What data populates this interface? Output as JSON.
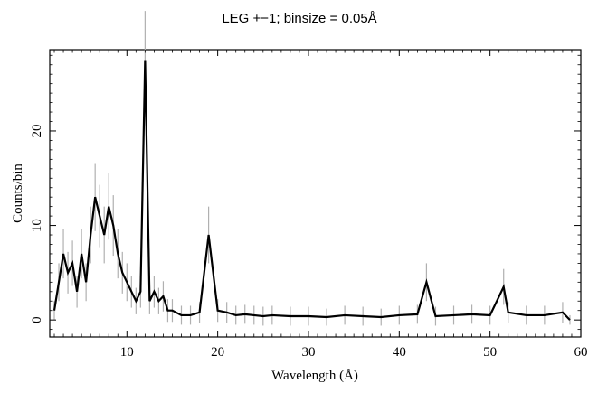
{
  "chart_data": {
    "type": "line",
    "title": "LEG +−1; binsize = 0.05Å",
    "xlabel": "Wavelength (Å)",
    "ylabel": "Counts/bin",
    "xlim": [
      1.5,
      60
    ],
    "ylim": [
      -1.8,
      28.6
    ],
    "xticks": [
      10,
      20,
      30,
      40,
      50,
      60
    ],
    "xtick_labels": [
      "10",
      "20",
      "30",
      "40",
      "50",
      "60"
    ],
    "yticks": [
      0,
      10,
      20
    ],
    "ytick_labels": [
      "0",
      "10",
      "20"
    ],
    "grid": false,
    "legend": "none",
    "series": [
      {
        "style": "histogram-with-error-bars",
        "color": "#000000",
        "error_color": "#b0b0b0",
        "x": [
          2,
          2.5,
          3,
          3.5,
          4,
          4.5,
          5,
          5.5,
          6,
          6.5,
          7,
          7.5,
          8,
          8.5,
          9,
          9.5,
          10,
          10.5,
          11,
          11.5,
          12,
          12.5,
          13,
          13.5,
          14,
          14.5,
          15,
          16,
          17,
          18,
          19,
          20,
          21,
          22,
          23,
          24,
          25,
          26,
          28,
          30,
          32,
          34,
          36,
          38,
          40,
          42,
          43,
          44,
          46,
          48,
          50,
          51.5,
          52,
          54,
          56,
          58,
          58.8
        ],
        "y": [
          1,
          4,
          7,
          5,
          6,
          3,
          7,
          4,
          9,
          13,
          11,
          9,
          12,
          10,
          7,
          5,
          4,
          3,
          2,
          3,
          27.5,
          2,
          3,
          2,
          2.5,
          1,
          1,
          0.5,
          0.5,
          0.8,
          9,
          1,
          0.8,
          0.5,
          0.6,
          0.5,
          0.4,
          0.5,
          0.4,
          0.4,
          0.3,
          0.5,
          0.4,
          0.3,
          0.5,
          0.6,
          4,
          0.4,
          0.5,
          0.6,
          0.5,
          3.5,
          0.8,
          0.5,
          0.5,
          0.8,
          0
        ],
        "err": [
          1,
          2,
          2.6,
          2.2,
          2.4,
          1.7,
          2.6,
          2,
          3,
          3.6,
          3.3,
          3,
          3.5,
          3.2,
          2.6,
          2.2,
          2,
          1.7,
          1.4,
          1.7,
          5.2,
          1.4,
          1.7,
          1.4,
          1.6,
          1.2,
          1.2,
          1,
          1,
          1.1,
          3,
          1.2,
          1.1,
          1,
          1,
          1,
          1,
          1,
          1,
          1,
          0.9,
          1,
          1,
          0.9,
          1,
          1,
          2,
          1,
          1,
          1,
          1,
          1.9,
          1.1,
          1,
          1,
          1.1,
          0.5
        ]
      }
    ]
  }
}
